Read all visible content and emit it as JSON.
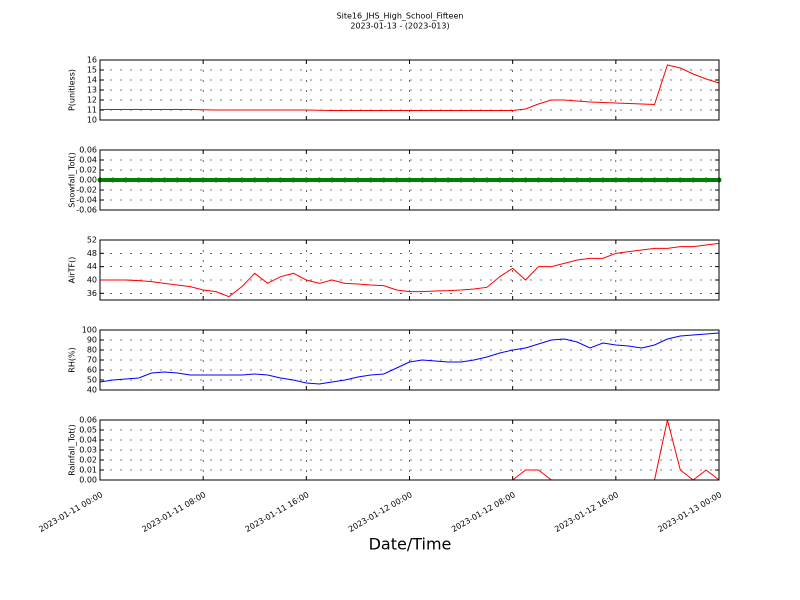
{
  "chart_data": [
    {
      "type": "line",
      "title": "Site16_JHS_High_School_Fifteen",
      "subtitle": "2023-01-13 - (2023-013)",
      "ylabel": "P(unitless)",
      "grid": true,
      "x": [
        "2023-01-11 00:00",
        "2023-01-11 01:00",
        "2023-01-11 02:00",
        "2023-01-11 03:00",
        "2023-01-11 04:00",
        "2023-01-11 05:00",
        "2023-01-11 06:00",
        "2023-01-11 07:00",
        "2023-01-11 08:00",
        "2023-01-11 09:00",
        "2023-01-11 10:00",
        "2023-01-11 11:00",
        "2023-01-11 12:00",
        "2023-01-11 13:00",
        "2023-01-11 14:00",
        "2023-01-11 15:00",
        "2023-01-11 16:00",
        "2023-01-11 17:00",
        "2023-01-11 18:00",
        "2023-01-11 19:00",
        "2023-01-11 20:00",
        "2023-01-11 21:00",
        "2023-01-11 22:00",
        "2023-01-11 23:00",
        "2023-01-12 00:00",
        "2023-01-12 01:00",
        "2023-01-12 02:00",
        "2023-01-12 03:00",
        "2023-01-12 04:00",
        "2023-01-12 05:00",
        "2023-01-12 06:00",
        "2023-01-12 07:00",
        "2023-01-12 08:00",
        "2023-01-12 09:00",
        "2023-01-12 10:00",
        "2023-01-12 11:00",
        "2023-01-12 12:00",
        "2023-01-12 13:00",
        "2023-01-12 14:00",
        "2023-01-12 15:00",
        "2023-01-12 16:00",
        "2023-01-12 17:00",
        "2023-01-12 18:00",
        "2023-01-12 19:00",
        "2023-01-12 20:00",
        "2023-01-12 21:00",
        "2023-01-12 22:00",
        "2023-01-12 23:00",
        "2023-01-13 00:00"
      ],
      "series": [
        {
          "name": "P",
          "color": "#ff0000",
          "values": [
            11.05,
            11.05,
            11.05,
            11.05,
            11.05,
            11.05,
            11.05,
            11.05,
            11.02,
            11.0,
            11.0,
            11.0,
            11.0,
            11.0,
            11.0,
            11.0,
            11.0,
            10.98,
            10.95,
            10.95,
            10.95,
            10.95,
            10.95,
            10.95,
            10.95,
            10.95,
            10.95,
            10.95,
            10.95,
            10.95,
            10.95,
            10.95,
            10.95,
            11.1,
            11.6,
            12.0,
            12.0,
            11.9,
            11.8,
            11.75,
            11.7,
            11.65,
            11.6,
            11.55,
            15.5,
            15.2,
            14.6,
            14.1,
            13.7
          ]
        }
      ],
      "xlim": [
        "2023-01-11 00:00",
        "2023-01-13 00:00"
      ],
      "xticks": [
        "2023-01-11 00:00",
        "2023-01-11 08:00",
        "2023-01-11 16:00",
        "2023-01-12 00:00",
        "2023-01-12 08:00",
        "2023-01-12 16:00",
        "2023-01-13 00:00"
      ],
      "ylim": [
        10,
        16
      ],
      "yticks": [
        10,
        11,
        12,
        13,
        14,
        15,
        16
      ]
    },
    {
      "type": "line",
      "ylabel": "Snowfall_Tot()",
      "grid": true,
      "markers": true,
      "x": [
        "2023-01-11 00:00",
        "2023-01-11 01:00",
        "2023-01-11 02:00",
        "2023-01-11 03:00",
        "2023-01-11 04:00",
        "2023-01-11 05:00",
        "2023-01-11 06:00",
        "2023-01-11 07:00",
        "2023-01-11 08:00",
        "2023-01-11 09:00",
        "2023-01-11 10:00",
        "2023-01-11 11:00",
        "2023-01-11 12:00",
        "2023-01-11 13:00",
        "2023-01-11 14:00",
        "2023-01-11 15:00",
        "2023-01-11 16:00",
        "2023-01-11 17:00",
        "2023-01-11 18:00",
        "2023-01-11 19:00",
        "2023-01-11 20:00",
        "2023-01-11 21:00",
        "2023-01-11 22:00",
        "2023-01-11 23:00",
        "2023-01-12 00:00",
        "2023-01-12 01:00",
        "2023-01-12 02:00",
        "2023-01-12 03:00",
        "2023-01-12 04:00",
        "2023-01-12 05:00",
        "2023-01-12 06:00",
        "2023-01-12 07:00",
        "2023-01-12 08:00",
        "2023-01-12 09:00",
        "2023-01-12 10:00",
        "2023-01-12 11:00",
        "2023-01-12 12:00",
        "2023-01-12 13:00",
        "2023-01-12 14:00",
        "2023-01-12 15:00",
        "2023-01-12 16:00",
        "2023-01-12 17:00",
        "2023-01-12 18:00",
        "2023-01-12 19:00",
        "2023-01-12 20:00",
        "2023-01-12 21:00",
        "2023-01-12 22:00",
        "2023-01-12 23:00",
        "2023-01-13 00:00"
      ],
      "series": [
        {
          "name": "Snowfall_Tot",
          "color": "#008000",
          "values": [
            0,
            0,
            0,
            0,
            0,
            0,
            0,
            0,
            0,
            0,
            0,
            0,
            0,
            0,
            0,
            0,
            0,
            0,
            0,
            0,
            0,
            0,
            0,
            0,
            0,
            0,
            0,
            0,
            0,
            0,
            0,
            0,
            0,
            0,
            0,
            0,
            0,
            0,
            0,
            0,
            0,
            0,
            0,
            0,
            0,
            0,
            0,
            0,
            0
          ]
        }
      ],
      "xlim": [
        "2023-01-11 00:00",
        "2023-01-13 00:00"
      ],
      "xticks": [
        "2023-01-11 00:00",
        "2023-01-11 08:00",
        "2023-01-11 16:00",
        "2023-01-12 00:00",
        "2023-01-12 08:00",
        "2023-01-12 16:00",
        "2023-01-13 00:00"
      ],
      "ylim": [
        -0.06,
        0.06
      ],
      "yticks": [
        -0.06,
        -0.04,
        -0.02,
        {
          "value": 0,
          "label": "0.00"
        },
        0.02,
        0.04,
        0.06
      ]
    },
    {
      "type": "line",
      "ylabel": "AirTF()",
      "grid": true,
      "x": [
        "2023-01-11 00:00",
        "2023-01-11 01:00",
        "2023-01-11 02:00",
        "2023-01-11 03:00",
        "2023-01-11 04:00",
        "2023-01-11 05:00",
        "2023-01-11 06:00",
        "2023-01-11 07:00",
        "2023-01-11 08:00",
        "2023-01-11 09:00",
        "2023-01-11 10:00",
        "2023-01-11 11:00",
        "2023-01-11 12:00",
        "2023-01-11 13:00",
        "2023-01-11 14:00",
        "2023-01-11 15:00",
        "2023-01-11 16:00",
        "2023-01-11 17:00",
        "2023-01-11 18:00",
        "2023-01-11 19:00",
        "2023-01-11 20:00",
        "2023-01-11 21:00",
        "2023-01-11 22:00",
        "2023-01-11 23:00",
        "2023-01-12 00:00",
        "2023-01-12 01:00",
        "2023-01-12 02:00",
        "2023-01-12 03:00",
        "2023-01-12 04:00",
        "2023-01-12 05:00",
        "2023-01-12 06:00",
        "2023-01-12 07:00",
        "2023-01-12 08:00",
        "2023-01-12 09:00",
        "2023-01-12 10:00",
        "2023-01-12 11:00",
        "2023-01-12 12:00",
        "2023-01-12 13:00",
        "2023-01-12 14:00",
        "2023-01-12 15:00",
        "2023-01-12 16:00",
        "2023-01-12 17:00",
        "2023-01-12 18:00",
        "2023-01-12 19:00",
        "2023-01-12 20:00",
        "2023-01-12 21:00",
        "2023-01-12 22:00",
        "2023-01-12 23:00",
        "2023-01-13 00:00"
      ],
      "series": [
        {
          "name": "AirTF",
          "color": "#ff0000",
          "values": [
            40,
            40,
            40,
            39.8,
            39.5,
            39,
            38.5,
            38,
            37,
            36.5,
            35,
            38,
            42,
            39,
            41,
            42,
            40,
            39,
            40,
            39,
            38.8,
            38.5,
            38.3,
            37,
            36.5,
            36.5,
            36.7,
            36.8,
            37,
            37.3,
            37.8,
            41,
            43.5,
            40,
            44,
            44,
            45,
            46,
            46.5,
            46.5,
            48,
            48.5,
            49,
            49.5,
            49.5,
            50,
            50,
            50.5,
            51
          ]
        }
      ],
      "xlim": [
        "2023-01-11 00:00",
        "2023-01-13 00:00"
      ],
      "xticks": [
        "2023-01-11 00:00",
        "2023-01-11 08:00",
        "2023-01-11 16:00",
        "2023-01-12 00:00",
        "2023-01-12 08:00",
        "2023-01-12 16:00",
        "2023-01-13 00:00"
      ],
      "ylim": [
        34,
        52
      ],
      "yticks": [
        36,
        40,
        44,
        48,
        52
      ]
    },
    {
      "type": "line",
      "ylabel": "RH(%)",
      "grid": true,
      "x": [
        "2023-01-11 00:00",
        "2023-01-11 01:00",
        "2023-01-11 02:00",
        "2023-01-11 03:00",
        "2023-01-11 04:00",
        "2023-01-11 05:00",
        "2023-01-11 06:00",
        "2023-01-11 07:00",
        "2023-01-11 08:00",
        "2023-01-11 09:00",
        "2023-01-11 10:00",
        "2023-01-11 11:00",
        "2023-01-11 12:00",
        "2023-01-11 13:00",
        "2023-01-11 14:00",
        "2023-01-11 15:00",
        "2023-01-11 16:00",
        "2023-01-11 17:00",
        "2023-01-11 18:00",
        "2023-01-11 19:00",
        "2023-01-11 20:00",
        "2023-01-11 21:00",
        "2023-01-11 22:00",
        "2023-01-11 23:00",
        "2023-01-12 00:00",
        "2023-01-12 01:00",
        "2023-01-12 02:00",
        "2023-01-12 03:00",
        "2023-01-12 04:00",
        "2023-01-12 05:00",
        "2023-01-12 06:00",
        "2023-01-12 07:00",
        "2023-01-12 08:00",
        "2023-01-12 09:00",
        "2023-01-12 10:00",
        "2023-01-12 11:00",
        "2023-01-12 12:00",
        "2023-01-12 13:00",
        "2023-01-12 14:00",
        "2023-01-12 15:00",
        "2023-01-12 16:00",
        "2023-01-12 17:00",
        "2023-01-12 18:00",
        "2023-01-12 19:00",
        "2023-01-12 20:00",
        "2023-01-12 21:00",
        "2023-01-12 22:00",
        "2023-01-12 23:00",
        "2023-01-13 00:00"
      ],
      "series": [
        {
          "name": "RH",
          "color": "#0000ff",
          "values": [
            48,
            50,
            51,
            52,
            57,
            58,
            57,
            55,
            55,
            55,
            55,
            55,
            56,
            55,
            52,
            50,
            47,
            46,
            48,
            50,
            53,
            55,
            56,
            62,
            68,
            70,
            69,
            68,
            68,
            70,
            73,
            77,
            80,
            82,
            86,
            90,
            91,
            88,
            82,
            87,
            85,
            84,
            82,
            85,
            91,
            94,
            95,
            96,
            97
          ]
        }
      ],
      "xlim": [
        "2023-01-11 00:00",
        "2023-01-13 00:00"
      ],
      "xticks": [
        "2023-01-11 00:00",
        "2023-01-11 08:00",
        "2023-01-11 16:00",
        "2023-01-12 00:00",
        "2023-01-12 08:00",
        "2023-01-12 16:00",
        "2023-01-13 00:00"
      ],
      "ylim": [
        40,
        100
      ],
      "yticks": [
        40,
        50,
        60,
        70,
        80,
        90,
        100
      ]
    },
    {
      "type": "line",
      "ylabel": "Rainfall_Tot()",
      "xlabel": "Date/Time",
      "grid": true,
      "x": [
        "2023-01-11 00:00",
        "2023-01-11 01:00",
        "2023-01-11 02:00",
        "2023-01-11 03:00",
        "2023-01-11 04:00",
        "2023-01-11 05:00",
        "2023-01-11 06:00",
        "2023-01-11 07:00",
        "2023-01-11 08:00",
        "2023-01-11 09:00",
        "2023-01-11 10:00",
        "2023-01-11 11:00",
        "2023-01-11 12:00",
        "2023-01-11 13:00",
        "2023-01-11 14:00",
        "2023-01-11 15:00",
        "2023-01-11 16:00",
        "2023-01-11 17:00",
        "2023-01-11 18:00",
        "2023-01-11 19:00",
        "2023-01-11 20:00",
        "2023-01-11 21:00",
        "2023-01-11 22:00",
        "2023-01-11 23:00",
        "2023-01-12 00:00",
        "2023-01-12 01:00",
        "2023-01-12 02:00",
        "2023-01-12 03:00",
        "2023-01-12 04:00",
        "2023-01-12 05:00",
        "2023-01-12 06:00",
        "2023-01-12 07:00",
        "2023-01-12 08:00",
        "2023-01-12 09:00",
        "2023-01-12 10:00",
        "2023-01-12 11:00",
        "2023-01-12 12:00",
        "2023-01-12 13:00",
        "2023-01-12 14:00",
        "2023-01-12 15:00",
        "2023-01-12 16:00",
        "2023-01-12 17:00",
        "2023-01-12 18:00",
        "2023-01-12 19:00",
        "2023-01-12 20:00",
        "2023-01-12 21:00",
        "2023-01-12 22:00",
        "2023-01-12 23:00",
        "2023-01-13 00:00"
      ],
      "series": [
        {
          "name": "Rainfall_Tot",
          "color": "#ff0000",
          "values": [
            0,
            0,
            0,
            0,
            0,
            0,
            0,
            0,
            0,
            0,
            0,
            0,
            0,
            0,
            0,
            0,
            0,
            0,
            0,
            0,
            0,
            0,
            0,
            0,
            0,
            0,
            0,
            0,
            0,
            0,
            0,
            0,
            0,
            0.01,
            0.01,
            0,
            0,
            0,
            0,
            0,
            0,
            0,
            0,
            0,
            0.06,
            0.01,
            0,
            0.01,
            0
          ]
        }
      ],
      "xlim": [
        "2023-01-11 00:00",
        "2023-01-13 00:00"
      ],
      "xticks": [
        "2023-01-11 00:00",
        "2023-01-11 08:00",
        "2023-01-11 16:00",
        "2023-01-12 00:00",
        "2023-01-12 08:00",
        "2023-01-12 16:00",
        "2023-01-13 00:00"
      ],
      "xticklabels": true,
      "ylim": [
        0,
        0.06
      ],
      "yticks": [
        {
          "value": 0,
          "label": "0.00"
        },
        0.01,
        0.02,
        0.03,
        0.04,
        0.05,
        0.06
      ]
    }
  ]
}
